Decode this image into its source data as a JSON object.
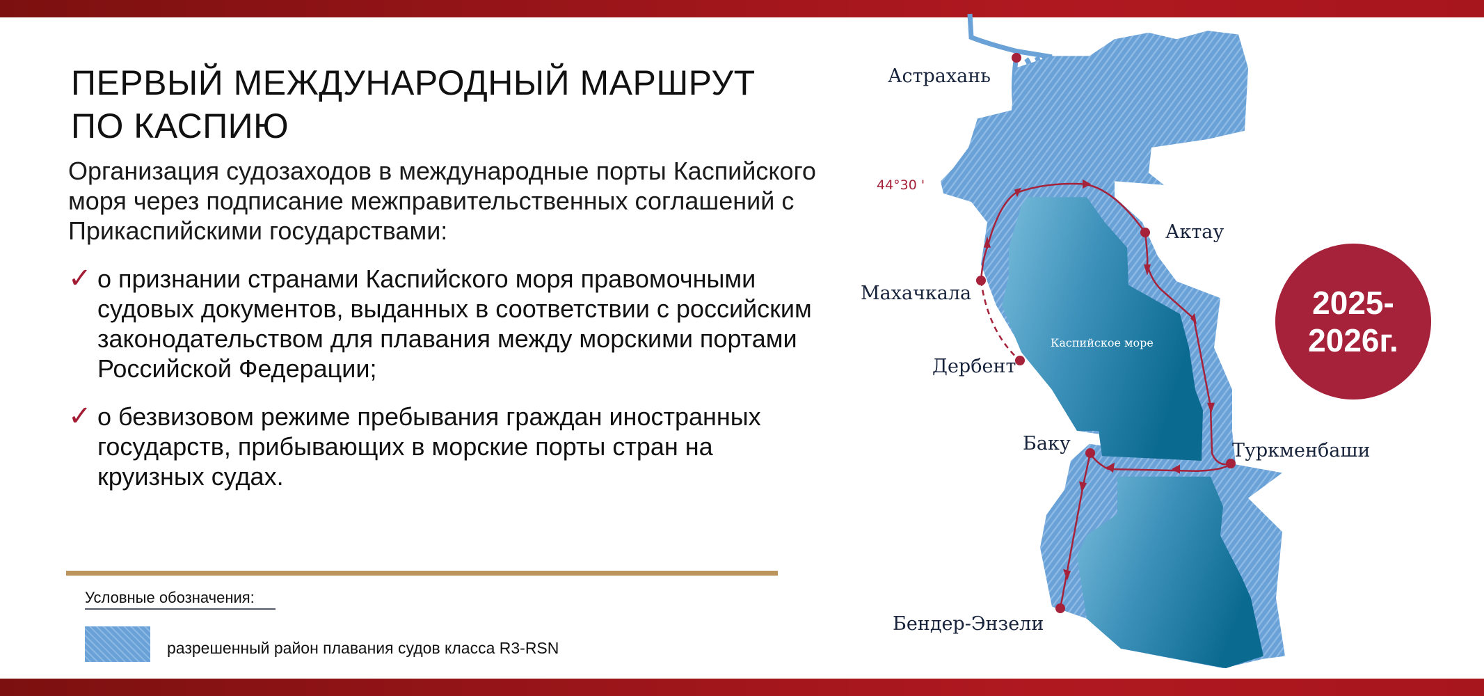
{
  "title": {
    "line1": "ПЕРВЫЙ МЕЖДУНАРОДНЫЙ МАРШРУТ",
    "line2": "ПО КАСПИЮ"
  },
  "intro": "Организация судозаходов в международные порты Каспийского моря через подписание межправительственных соглашений с Прикаспийскими государствами:",
  "bullets": [
    {
      "icon": "checkmark-icon",
      "text": "о признании странами Каспийского моря правомочными судовых документов, выданных в соответствии с российским законодательством для плавания между морскими портами Российской Федерации;"
    },
    {
      "icon": "checkmark-icon",
      "text": "о безвизовом режиме пребывания граждан иностранных государств, прибывающих в морские порты стран на круизных судах."
    }
  ],
  "legend": {
    "title": "Условные обозначения:",
    "items": [
      {
        "label": "разрешенный район плавания судов класса R3-RSN",
        "color": "#6aa2d8"
      }
    ]
  },
  "map": {
    "sea_label": "Каспийское море",
    "latitude_label": "44°30 '",
    "ports": [
      "Астрахань",
      "Актау",
      "Махачкала",
      "Дербент",
      "Баку",
      "Туркменбаши",
      "Бендер-Энзели"
    ],
    "route_color": "#a6213a"
  },
  "badge": {
    "line1": "2025-",
    "line2": "2026г.",
    "color": "#a6213a"
  },
  "colors": {
    "bar": "#9a1519",
    "gold": "#bc955c",
    "hatch": "#6aa2d8"
  }
}
